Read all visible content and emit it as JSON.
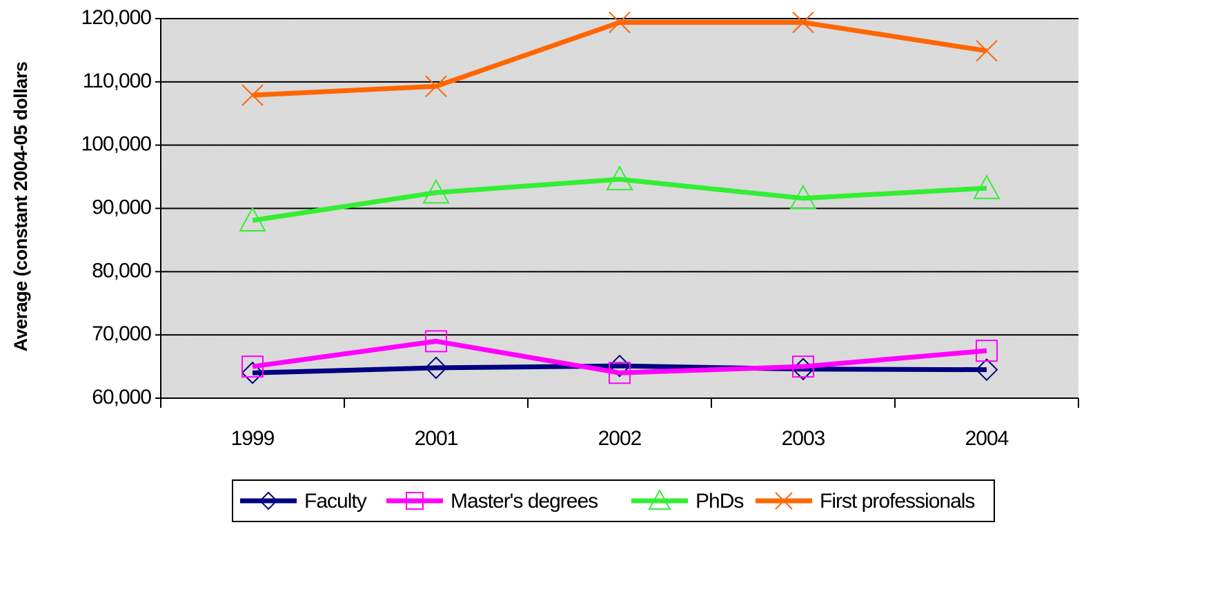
{
  "chart_data": {
    "type": "line",
    "y_label": "Average (constant 2004-05 dollars",
    "categories": [
      "1999",
      "2001",
      "2002",
      "2003",
      "2004"
    ],
    "series": [
      {
        "name": "Faculty",
        "color": "#000080",
        "marker": "diamond",
        "values": [
          64000,
          64800,
          65100,
          64600,
          64500
        ]
      },
      {
        "name": "Master's degrees",
        "color": "#ff00ff",
        "marker": "square",
        "values": [
          65000,
          69000,
          64000,
          65000,
          67500
        ]
      },
      {
        "name": "PhDs",
        "color": "#33ee33",
        "marker": "triangle",
        "values": [
          88100,
          92500,
          94600,
          91600,
          93200
        ]
      },
      {
        "name": "First professionals",
        "color": "#ff6600",
        "marker": "x",
        "values": [
          107900,
          109300,
          119400,
          119400,
          114900
        ]
      }
    ],
    "ylim": [
      60000,
      120000
    ],
    "yticks": [
      {
        "value": 60000,
        "label": "60,000"
      },
      {
        "value": 70000,
        "label": "70,000"
      },
      {
        "value": 80000,
        "label": "80,000"
      },
      {
        "value": 90000,
        "label": "90,000"
      },
      {
        "value": 100000,
        "label": "100,000"
      },
      {
        "value": 110000,
        "label": "110,000"
      },
      {
        "value": 120000,
        "label": "120,000"
      }
    ],
    "grid": true,
    "legend": "bottom"
  }
}
